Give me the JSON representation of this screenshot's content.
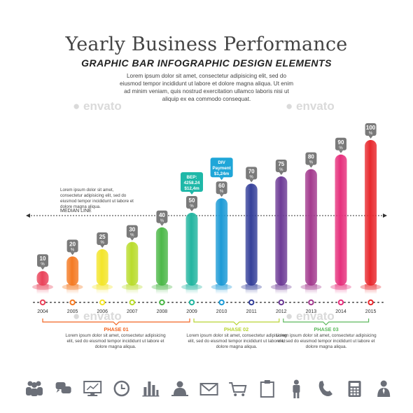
{
  "header": {
    "title": "Yearly Business Performance",
    "subtitle": "GRAPHIC BAR INFOGRAPHIC DESIGN ELEMENTS",
    "intro": "Lorem ipsum dolor sit amet, consectetur adipisicing elit, sed do eiusmod tempor incididunt ut labore et dolore magna aliqua. Ut enim ad minim veniam, quis nostrud exercitation ullamco laboris nisi ut aliquip ex ea commodo consequat."
  },
  "watermark": "envato",
  "side_note": {
    "text": "Lorem ipsum dolor sit amet, consectetur adipisicing elit, sed do eiusmod tempor incididunt ut labore et dolore magna aliqua.",
    "median_label": "MEDIAN LINE"
  },
  "callouts": [
    {
      "year": "2009",
      "lines": [
        "BEP:",
        "4258.24",
        "$12,4m"
      ],
      "color": "#1fb8a8"
    },
    {
      "year": "2010",
      "lines": [
        "DIV",
        "Payment",
        "$1,24m"
      ],
      "color": "#1fa6d8"
    }
  ],
  "phases": [
    {
      "title": "PHASE 01",
      "color": "#f26522",
      "text": "Lorem ipsum dolor sit amet, consectetur adipisicing elit, sed do eiusmod tempor incididunt ut labore et dolore magna aliqua."
    },
    {
      "title": "PHASE 02",
      "color": "#b7d433",
      "text": "Lorem ipsum dolor sit amet, consectetur adipisicing elit, sed do eiusmod tempor incididunt ut labore et dolore magna aliqua."
    },
    {
      "title": "PHASE 03",
      "color": "#5cb85c",
      "text": "Lorem ipsum dolor sit amet, consectetur adipisicing elit, sed do eiusmod tempor incididunt ut labore et dolore magna aliqua."
    }
  ],
  "icons": [
    "users-icon",
    "chat-icon",
    "monitor-chart-icon",
    "clock-icon",
    "bar-chart-icon",
    "presenter-icon",
    "envelope-icon",
    "shopping-cart-icon",
    "clipboard-icon",
    "person-icon",
    "phone-icon",
    "calculator-icon",
    "businessman-icon"
  ],
  "chart_data": {
    "type": "bar",
    "categories": [
      "2004",
      "2005",
      "2006",
      "2007",
      "2008",
      "2009",
      "2010",
      "2011",
      "2012",
      "2013",
      "2014",
      "2015"
    ],
    "values": [
      10,
      20,
      25,
      30,
      40,
      50,
      60,
      70,
      75,
      80,
      90,
      100
    ],
    "value_labels": [
      "10\n%",
      "20\n%",
      "25\n%",
      "30\n%",
      "40\n%",
      "50\n%",
      "60\n%",
      "70\n%",
      "75\n%",
      "80\n%",
      "90\n%",
      "100\n%"
    ],
    "colors": [
      "#e9435a",
      "#f47a23",
      "#f3e52a",
      "#b9dc2c",
      "#4cb848",
      "#22b5a0",
      "#1c9ad6",
      "#35409a",
      "#6d3b96",
      "#a33a8e",
      "#e6307c",
      "#e8282d"
    ],
    "ylim": [
      0,
      100
    ],
    "median_value": 40,
    "phase_ranges": [
      [
        "2004",
        "2009"
      ],
      [
        "2009",
        "2012"
      ],
      [
        "2012",
        "2015"
      ]
    ],
    "grid": false
  }
}
